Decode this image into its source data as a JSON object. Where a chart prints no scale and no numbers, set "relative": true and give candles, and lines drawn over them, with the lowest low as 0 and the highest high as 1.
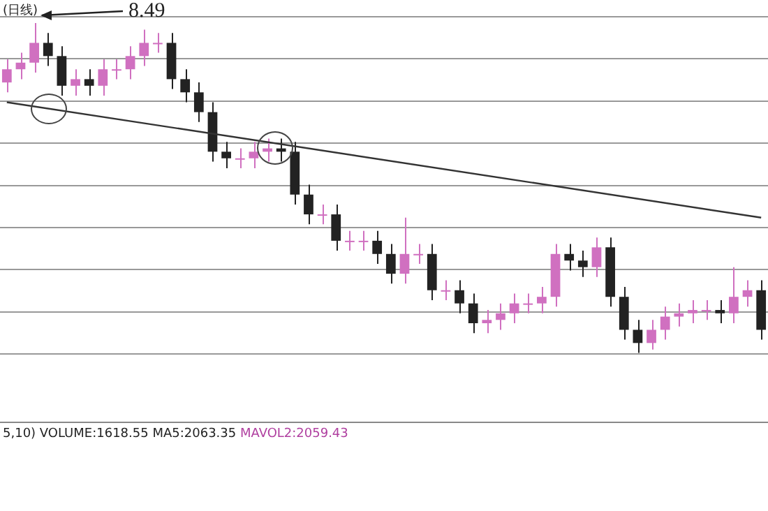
{
  "chart_data": {
    "type": "candlestick",
    "title": "(日线)",
    "relative": true,
    "grid": "y",
    "categories": [
      null,
      null,
      null,
      null,
      null,
      null,
      null,
      null,
      null,
      null,
      null,
      null,
      null,
      null,
      null,
      null,
      null,
      null,
      null,
      null,
      null,
      null,
      null,
      null,
      null,
      null,
      null,
      null,
      null,
      null,
      null,
      null,
      null,
      null,
      null,
      null,
      null,
      null,
      null,
      null,
      null,
      null,
      null,
      null,
      null,
      null,
      null,
      null,
      null,
      null,
      null,
      null,
      null,
      null,
      null,
      null
    ],
    "ohlc": [
      [
        0.82,
        0.89,
        0.79,
        0.86
      ],
      [
        0.86,
        0.91,
        0.83,
        0.88
      ],
      [
        0.88,
        1.0,
        0.85,
        0.94
      ],
      [
        0.94,
        0.97,
        0.87,
        0.9
      ],
      [
        0.9,
        0.93,
        0.78,
        0.81
      ],
      [
        0.81,
        0.86,
        0.78,
        0.83
      ],
      [
        0.83,
        0.86,
        0.78,
        0.81
      ],
      [
        0.81,
        0.89,
        0.78,
        0.86
      ],
      [
        0.86,
        0.89,
        0.83,
        0.86
      ],
      [
        0.86,
        0.93,
        0.83,
        0.9
      ],
      [
        0.9,
        0.98,
        0.87,
        0.94
      ],
      [
        0.94,
        0.97,
        0.91,
        0.94
      ],
      [
        0.94,
        0.97,
        0.8,
        0.83
      ],
      [
        0.83,
        0.86,
        0.76,
        0.79
      ],
      [
        0.79,
        0.82,
        0.7,
        0.73
      ],
      [
        0.73,
        0.76,
        0.58,
        0.61
      ],
      [
        0.61,
        0.64,
        0.56,
        0.59
      ],
      [
        0.59,
        0.62,
        0.56,
        0.59
      ],
      [
        0.59,
        0.64,
        0.56,
        0.61
      ],
      [
        0.61,
        0.65,
        0.58,
        0.62
      ],
      [
        0.62,
        0.65,
        0.58,
        0.61
      ],
      [
        0.61,
        0.64,
        0.45,
        0.48
      ],
      [
        0.48,
        0.51,
        0.39,
        0.42
      ],
      [
        0.42,
        0.45,
        0.39,
        0.42
      ],
      [
        0.42,
        0.45,
        0.31,
        0.34
      ],
      [
        0.34,
        0.37,
        0.31,
        0.34
      ],
      [
        0.34,
        0.37,
        0.31,
        0.34
      ],
      [
        0.34,
        0.37,
        0.27,
        0.3
      ],
      [
        0.3,
        0.33,
        0.21,
        0.24
      ],
      [
        0.24,
        0.41,
        0.21,
        0.3
      ],
      [
        0.3,
        0.33,
        0.27,
        0.3
      ],
      [
        0.3,
        0.33,
        0.16,
        0.19
      ],
      [
        0.19,
        0.22,
        0.16,
        0.19
      ],
      [
        0.19,
        0.22,
        0.12,
        0.15
      ],
      [
        0.15,
        0.18,
        0.06,
        0.09
      ],
      [
        0.09,
        0.13,
        0.06,
        0.1
      ],
      [
        0.1,
        0.15,
        0.07,
        0.12
      ],
      [
        0.12,
        0.18,
        0.09,
        0.15
      ],
      [
        0.15,
        0.18,
        0.12,
        0.15
      ],
      [
        0.15,
        0.2,
        0.12,
        0.17
      ],
      [
        0.17,
        0.33,
        0.14,
        0.3
      ],
      [
        0.3,
        0.33,
        0.25,
        0.28
      ],
      [
        0.28,
        0.31,
        0.23,
        0.26
      ],
      [
        0.26,
        0.35,
        0.23,
        0.32
      ],
      [
        0.32,
        0.35,
        0.14,
        0.17
      ],
      [
        0.17,
        0.2,
        0.04,
        0.07
      ],
      [
        0.07,
        0.1,
        0.0,
        0.03
      ],
      [
        0.03,
        0.1,
        0.01,
        0.07
      ],
      [
        0.07,
        0.14,
        0.04,
        0.11
      ],
      [
        0.11,
        0.15,
        0.08,
        0.12
      ],
      [
        0.12,
        0.16,
        0.09,
        0.13
      ],
      [
        0.13,
        0.16,
        0.1,
        0.13
      ],
      [
        0.13,
        0.16,
        0.09,
        0.12
      ],
      [
        0.12,
        0.26,
        0.09,
        0.17
      ],
      [
        0.17,
        0.22,
        0.14,
        0.19
      ],
      [
        0.19,
        0.22,
        0.04,
        0.07
      ]
    ],
    "colors": [
      "#d070c0",
      "#d070c0",
      "#d070c0",
      "#222222",
      "#222222",
      "#d070c0",
      "#222222",
      "#d070c0",
      "#d070c0",
      "#d070c0",
      "#d070c0",
      "#d070c0",
      "#222222",
      "#222222",
      "#222222",
      "#222222",
      "#222222",
      "#d070c0",
      "#d070c0",
      "#d070c0",
      "#222222",
      "#222222",
      "#222222",
      "#d070c0",
      "#222222",
      "#d070c0",
      "#d070c0",
      "#222222",
      "#222222",
      "#d070c0",
      "#d070c0",
      "#222222",
      "#d070c0",
      "#222222",
      "#222222",
      "#d070c0",
      "#d070c0",
      "#d070c0",
      "#d070c0",
      "#d070c0",
      "#d070c0",
      "#222222",
      "#222222",
      "#d070c0",
      "#222222",
      "#222222",
      "#222222",
      "#d070c0",
      "#d070c0",
      "#d070c0",
      "#d070c0",
      "#d070c0",
      "#222222",
      "#d070c0",
      "#d070c0",
      "#222222"
    ],
    "series": [
      {
        "type": "line",
        "color": "#333333",
        "values": [
          0.76,
          null,
          null,
          null,
          null,
          null,
          null,
          null,
          null,
          null,
          null,
          null,
          null,
          null,
          null,
          null,
          null,
          null,
          null,
          null,
          null,
          null,
          null,
          null,
          null,
          null,
          null,
          null,
          null,
          null,
          null,
          null,
          null,
          null,
          null,
          null,
          null,
          null,
          null,
          null,
          null,
          null,
          null,
          null,
          null,
          null,
          null,
          null,
          null,
          null,
          null,
          null,
          null,
          null,
          null,
          0.41
        ]
      }
    ],
    "annotations": [
      "8.49",
      "5,10) VOLUME:1618.55 MA5:2063.35",
      "MAVOL2:2059.43"
    ]
  }
}
